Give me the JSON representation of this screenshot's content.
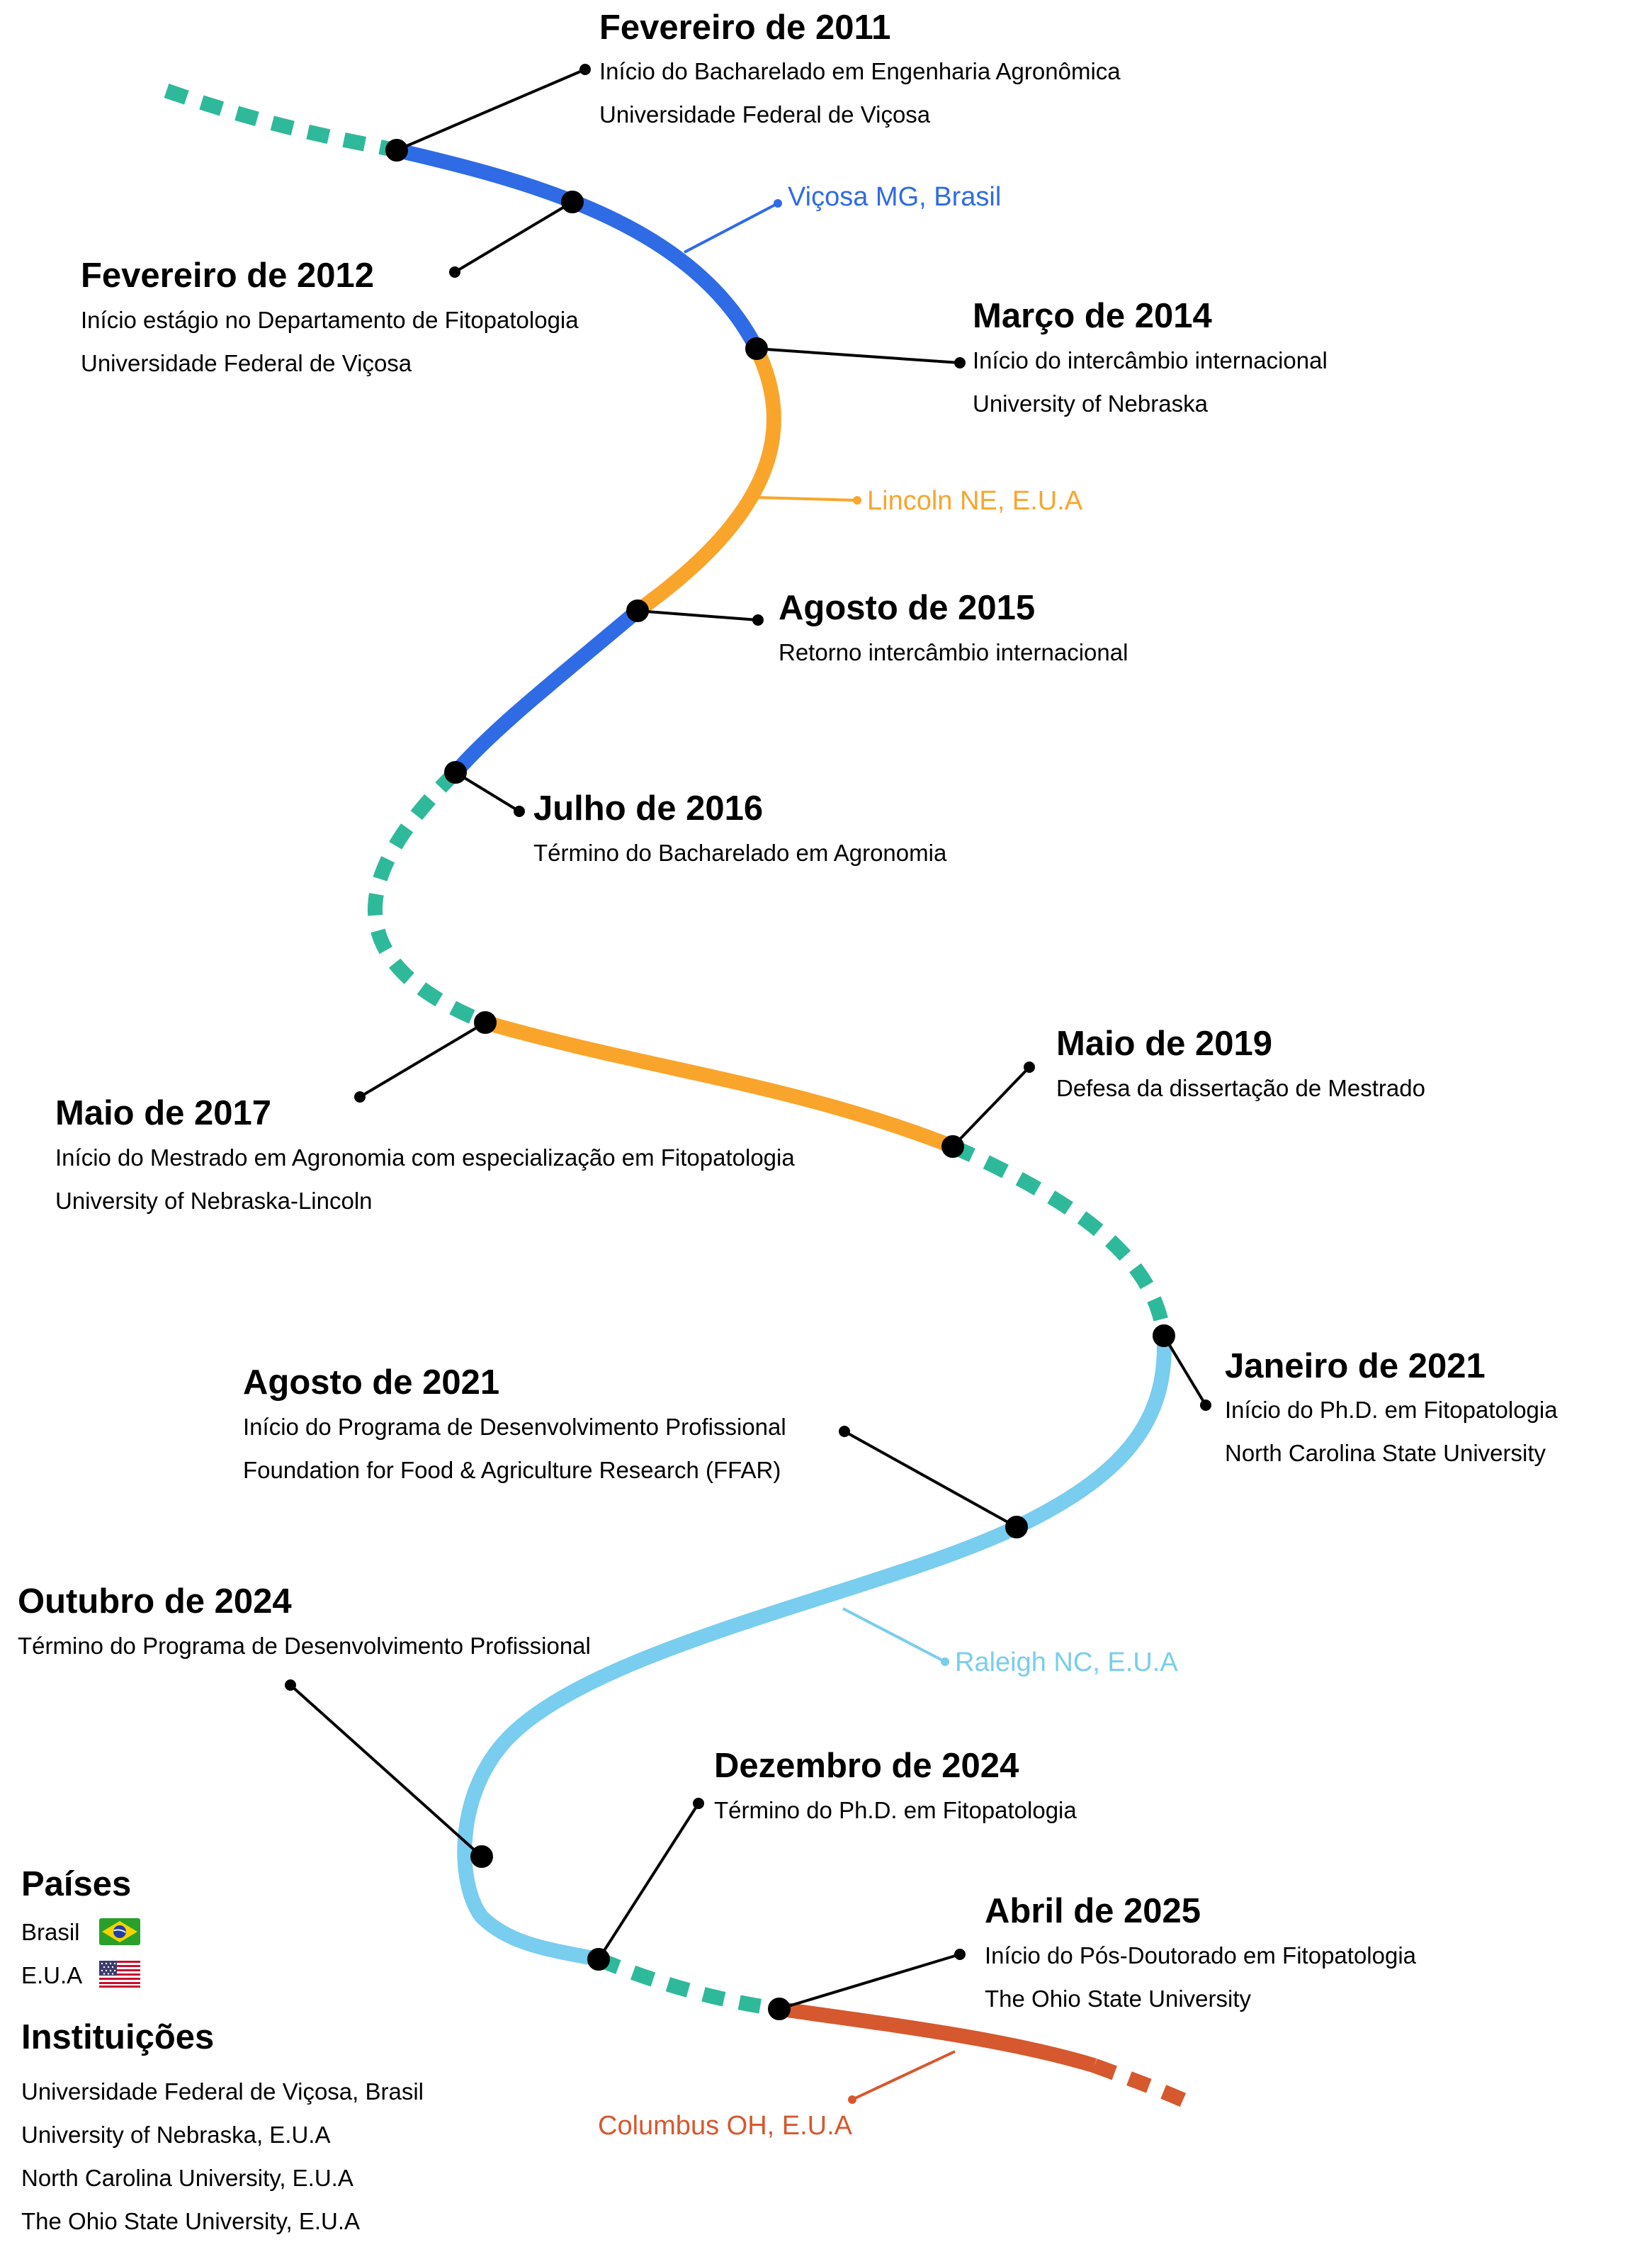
{
  "colors": {
    "brasil_line": "#2f6be4",
    "lincoln_line": "#f9a52b",
    "raleigh_line": "#79cdee",
    "columbus_line": "#d6582e",
    "transition_dash": "#2fb99b",
    "marker": "#000000"
  },
  "events": [
    {
      "title": "Fevereiro de 2011",
      "lines": [
        "Início do Bacharelado em Engenharia Agronômica",
        "Universidade Federal de Viçosa"
      ]
    },
    {
      "title": "Fevereiro de 2012",
      "lines": [
        "Início estágio no Departamento de Fitopatologia",
        "Universidade Federal de Viçosa"
      ]
    },
    {
      "title": "Março de 2014",
      "lines": [
        "Início do intercâmbio internacional",
        "University of Nebraska"
      ]
    },
    {
      "title": "Agosto de 2015",
      "lines": [
        "Retorno intercâmbio internacional"
      ]
    },
    {
      "title": "Julho de 2016",
      "lines": [
        "Término do Bacharelado em Agronomia"
      ]
    },
    {
      "title": "Maio de 2017",
      "lines": [
        "Início do Mestrado em Agronomia com especialização em Fitopatologia",
        "University of Nebraska-Lincoln"
      ]
    },
    {
      "title": "Maio de 2019",
      "lines": [
        "Defesa da dissertação de Mestrado"
      ]
    },
    {
      "title": "Janeiro de 2021",
      "lines": [
        "Início do Ph.D. em Fitopatologia",
        "North Carolina State University"
      ]
    },
    {
      "title": "Agosto de 2021",
      "lines": [
        "Início do Programa de Desenvolvimento Profissional",
        "Foundation for Food & Agriculture Research (FFAR)"
      ]
    },
    {
      "title": "Outubro de 2024",
      "lines": [
        "Término do Programa de Desenvolvimento Profissional"
      ]
    },
    {
      "title": "Dezembro de 2024",
      "lines": [
        "Término do Ph.D. em Fitopatologia"
      ]
    },
    {
      "title": "Abril de 2025",
      "lines": [
        "Início do Pós-Doutorado em Fitopatologia",
        "The Ohio State University"
      ]
    }
  ],
  "places": [
    {
      "label": "Viçosa MG, Brasil",
      "color": "#2f6be4"
    },
    {
      "label": "Lincoln NE, E.U.A",
      "color": "#f9a52b"
    },
    {
      "label": "Raleigh NC, E.U.A",
      "color": "#79cdee"
    },
    {
      "label": "Columbus OH, E.U.A",
      "color": "#d6582e"
    }
  ],
  "legend": {
    "countries_title": "Países",
    "countries": [
      {
        "label": "Brasil",
        "flag_icon": "brazil-flag-icon"
      },
      {
        "label": "E.U.A",
        "flag_icon": "usa-flag-icon"
      }
    ],
    "institutions_title": "Instituições",
    "institutions": [
      "Universidade Federal de Viçosa, Brasil",
      "University of Nebraska, E.U.A",
      "North Carolina University, E.U.A",
      "The Ohio State University, E.U.A"
    ]
  }
}
